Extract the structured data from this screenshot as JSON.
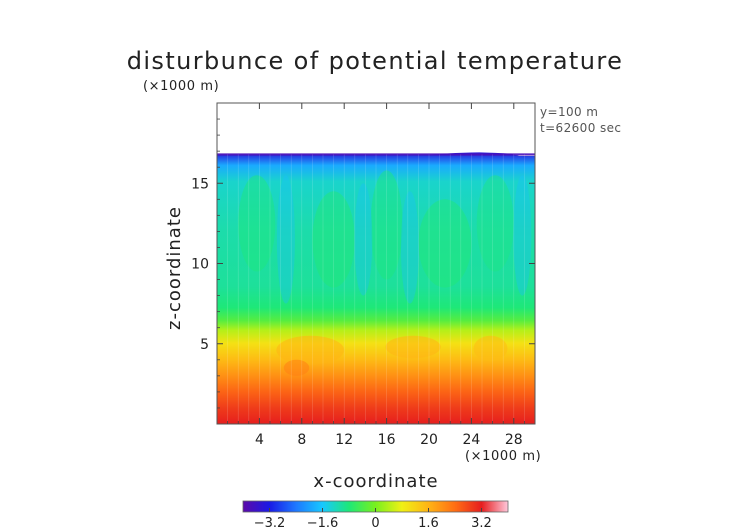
{
  "chart_data": {
    "type": "heatmap",
    "title": "disturbunce of potential temperature",
    "xlabel": "x-coordinate",
    "ylabel": "z-coordinate",
    "x_unit": "(×1000 m)",
    "y_unit": "(×1000 m)",
    "annotations": [
      "y=100 m",
      "t=62600 sec"
    ],
    "xlim": [
      0,
      30
    ],
    "ylim": [
      0,
      20
    ],
    "x_ticks": [
      4,
      8,
      12,
      16,
      20,
      24,
      28
    ],
    "y_ticks": [
      5,
      10,
      15
    ],
    "data_top": 16.8,
    "colorbar": {
      "range": [
        -4,
        4
      ],
      "ticks": [
        "−3.2",
        "−1.6",
        "0",
        "1.6",
        "3.2"
      ],
      "tick_values": [
        -3.2,
        -1.6,
        0,
        1.6,
        3.2
      ],
      "colors": [
        "#5c0aa8",
        "#1a1ae6",
        "#1e78ff",
        "#18c8ff",
        "#1ee878",
        "#78f01e",
        "#f0f014",
        "#ffb414",
        "#ff6e14",
        "#e61e1e",
        "#ffc8dc"
      ]
    },
    "layers": [
      {
        "z": 0.0,
        "value": 3.2
      },
      {
        "z": 1.0,
        "value": 2.9
      },
      {
        "z": 2.0,
        "value": 2.5
      },
      {
        "z": 3.0,
        "value": 2.0
      },
      {
        "z": 4.0,
        "value": 1.5
      },
      {
        "z": 5.0,
        "value": 1.0
      },
      {
        "z": 5.8,
        "value": 0.4
      },
      {
        "z": 6.4,
        "value": -0.3
      },
      {
        "z": 7.2,
        "value": -0.8
      },
      {
        "z": 8.5,
        "value": -1.0
      },
      {
        "z": 12.0,
        "value": -1.1
      },
      {
        "z": 15.0,
        "value": -1.3
      },
      {
        "z": 16.0,
        "value": -1.9
      },
      {
        "z": 16.8,
        "value": -3.4
      }
    ]
  }
}
